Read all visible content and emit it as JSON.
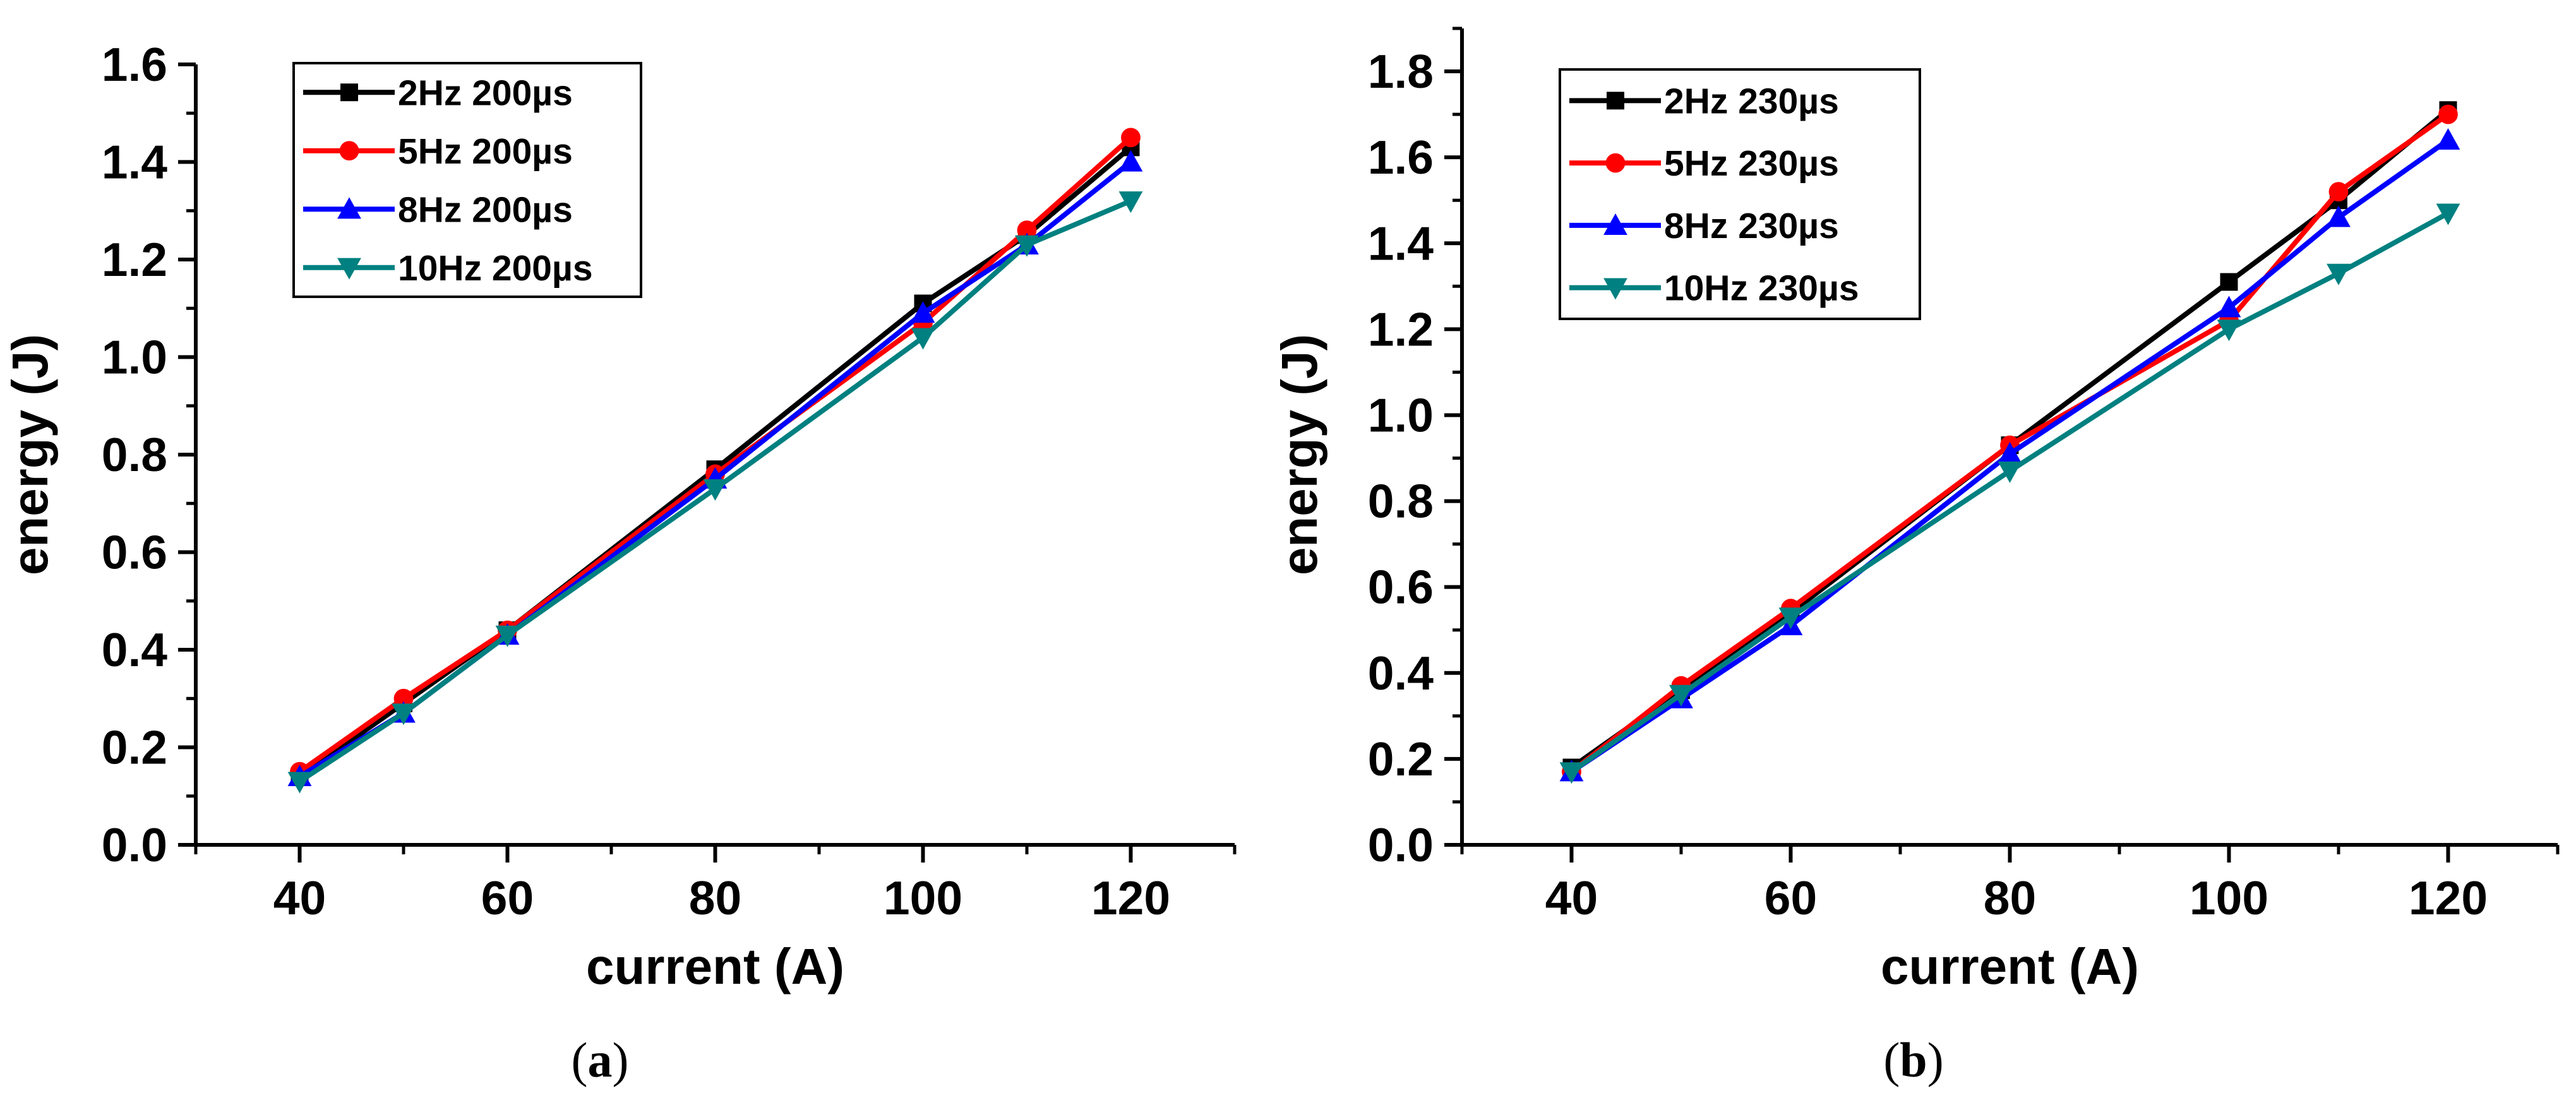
{
  "chart_data": [
    {
      "type": "line",
      "panel_label": "a",
      "xlabel": "current (A)",
      "ylabel": "energy (J)",
      "xlim": [
        30,
        130
      ],
      "ylim": [
        0.0,
        1.6
      ],
      "xticks": [
        40,
        60,
        80,
        100,
        120
      ],
      "xtick_labels": [
        "40",
        "60",
        "80",
        "100",
        "120"
      ],
      "yticks": [
        0.0,
        0.2,
        0.4,
        0.6,
        0.8,
        1.0,
        1.2,
        1.4,
        1.6
      ],
      "ytick_labels": [
        "0.0",
        "0.2",
        "0.4",
        "0.6",
        "0.8",
        "1.0",
        "1.2",
        "1.4",
        "1.6"
      ],
      "grid": false,
      "legend_position": "top-left",
      "x": [
        40,
        50,
        60,
        80,
        100,
        110,
        120
      ],
      "series": [
        {
          "name": "2Hz 200µs",
          "color": "#000000",
          "marker": "square",
          "values": [
            0.14,
            0.29,
            0.44,
            0.77,
            1.11,
            1.25,
            1.43
          ]
        },
        {
          "name": "5Hz 200µs",
          "color": "#ff0000",
          "marker": "circle",
          "values": [
            0.15,
            0.3,
            0.44,
            0.76,
            1.07,
            1.26,
            1.45
          ]
        },
        {
          "name": "8Hz 200µs",
          "color": "#0000ff",
          "marker": "triangle-up",
          "values": [
            0.14,
            0.27,
            0.43,
            0.75,
            1.09,
            1.23,
            1.4
          ]
        },
        {
          "name": "10Hz 200µs",
          "color": "#008080",
          "marker": "triangle-down",
          "values": [
            0.13,
            0.27,
            0.43,
            0.73,
            1.04,
            1.23,
            1.32
          ]
        }
      ]
    },
    {
      "type": "line",
      "panel_label": "b",
      "xlabel": "current (A)",
      "ylabel": "energy (J)",
      "xlim": [
        30,
        130
      ],
      "ylim": [
        0.0,
        1.9
      ],
      "xticks": [
        40,
        60,
        80,
        100,
        120
      ],
      "xtick_labels": [
        "40",
        "60",
        "80",
        "100",
        "120"
      ],
      "yticks": [
        0.0,
        0.2,
        0.4,
        0.6,
        0.8,
        1.0,
        1.2,
        1.4,
        1.6,
        1.8
      ],
      "ytick_labels": [
        "0.0",
        "0.2",
        "0.4",
        "0.6",
        "0.8",
        "1.0",
        "1.2",
        "1.4",
        "1.6",
        "1.8"
      ],
      "grid": false,
      "legend_position": "top-left",
      "x": [
        40,
        50,
        60,
        80,
        100,
        110,
        120
      ],
      "series": [
        {
          "name": "2Hz 230µs",
          "color": "#000000",
          "marker": "square",
          "values": [
            0.18,
            0.36,
            0.54,
            0.93,
            1.31,
            1.5,
            1.71
          ]
        },
        {
          "name": "5Hz 230µs",
          "color": "#ff0000",
          "marker": "circle",
          "values": [
            0.17,
            0.37,
            0.55,
            0.93,
            1.22,
            1.52,
            1.7
          ]
        },
        {
          "name": "8Hz 230µs",
          "color": "#0000ff",
          "marker": "triangle-up",
          "values": [
            0.17,
            0.34,
            0.51,
            0.91,
            1.25,
            1.46,
            1.64
          ]
        },
        {
          "name": "10Hz 230µs",
          "color": "#008080",
          "marker": "triangle-down",
          "values": [
            0.17,
            0.35,
            0.53,
            0.87,
            1.2,
            1.33,
            1.47
          ]
        }
      ]
    }
  ]
}
